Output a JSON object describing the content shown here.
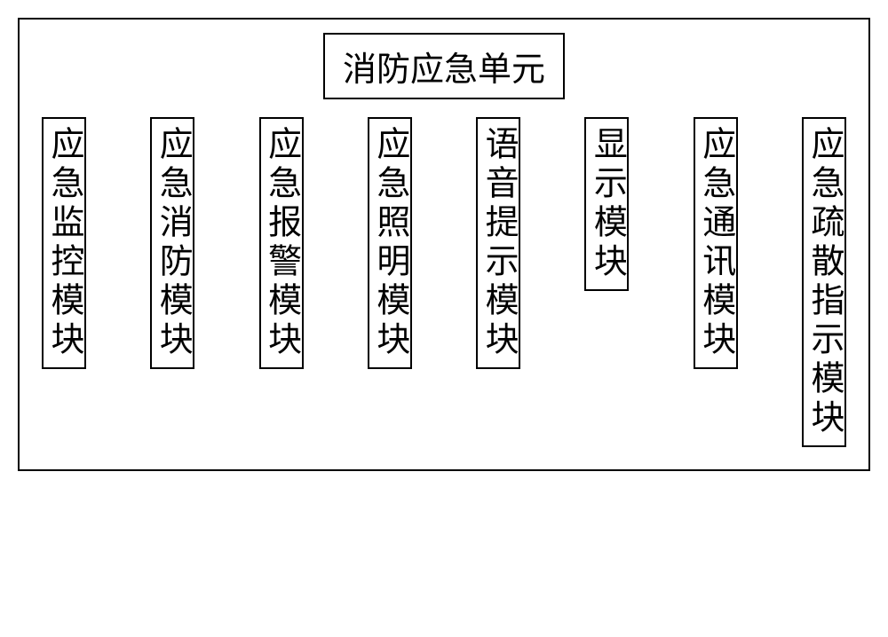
{
  "diagram": {
    "title": "消防应急单元",
    "modules": [
      {
        "label": "应急监控模块"
      },
      {
        "label": "应急消防模块"
      },
      {
        "label": "应急报警模块"
      },
      {
        "label": "应急照明模块"
      },
      {
        "label": "语音提示模块"
      },
      {
        "label": "显示模块"
      },
      {
        "label": "应急通讯模块"
      },
      {
        "label": "应急疏散指示模块"
      }
    ],
    "style": {
      "container_width": 960,
      "container_border_color": "#000000",
      "container_border_width": 2,
      "background_color": "#ffffff",
      "title_fontsize": 38,
      "module_fontsize": 38,
      "text_color": "#000000",
      "font_family": "SimSun",
      "letter_spacing": 6,
      "module_gap": 28
    }
  }
}
